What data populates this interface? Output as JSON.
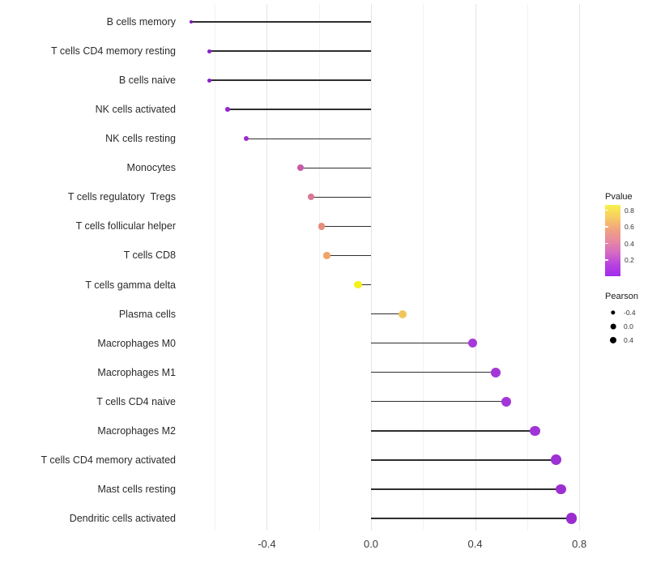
{
  "chart_data": {
    "type": "scatter",
    "variant": "lollipop",
    "orientation": "horizontal",
    "categories": [
      "B cells memory",
      "T cells CD4 memory resting",
      "B cells naive",
      "NK cells activated",
      "NK cells resting",
      "Monocytes",
      "T cells regulatory  Tregs",
      "T cells follicular helper",
      "T cells CD8",
      "T cells gamma delta",
      "Plasma cells",
      "Macrophages M0",
      "Macrophages M1",
      "T cells CD4 naive",
      "Macrophages M2",
      "T cells CD4 memory activated",
      "Mast cells resting",
      "Dendritic cells activated"
    ],
    "series": [
      {
        "name": "Pearson",
        "values": [
          -0.69,
          -0.62,
          -0.62,
          -0.55,
          -0.48,
          -0.27,
          -0.23,
          -0.19,
          -0.17,
          -0.05,
          0.12,
          0.39,
          0.48,
          0.52,
          0.63,
          0.71,
          0.73,
          0.77
        ]
      }
    ],
    "point_colors": [
      "#7E17BD",
      "#8A20C6",
      "#8C21C7",
      "#9428CC",
      "#9A2BD0",
      "#C75BA9",
      "#D97895",
      "#E68E7C",
      "#EFA468",
      "#F4F01C",
      "#F0C65C",
      "#A639DA",
      "#A537D9",
      "#A436D8",
      "#A134D6",
      "#9E31D3",
      "#9D2FD2",
      "#9A2CD0"
    ],
    "xlabel": "",
    "ylabel": "",
    "xlim": [
      -0.78,
      0.87
    ],
    "x_tick_labels": [
      "-0.4",
      "0.0",
      "0.4",
      "0.8"
    ],
    "x_major_gridlines": [
      -0.4,
      0.0,
      0.4,
      0.8
    ],
    "x_minor_gridlines": [
      -0.6,
      -0.2,
      0.2,
      0.6
    ],
    "grid": "vertical-only",
    "legend_position": "right",
    "legend": {
      "pvalue": {
        "title": "Pvalue",
        "tick_labels": [
          "0.8",
          "0.6",
          "0.4",
          "0.2"
        ],
        "gradient_stops": [
          "#F8F04B",
          "#F7CE61",
          "#F2A57F",
          "#E78BA0",
          "#D66BC2",
          "#B844E0",
          "#A02CEC"
        ]
      },
      "pearson": {
        "title": "Pearson",
        "items": [
          {
            "label": "-0.4",
            "value": -0.4
          },
          {
            "label": "0.0",
            "value": 0.0
          },
          {
            "label": "0.4",
            "value": 0.4
          }
        ]
      }
    },
    "colors": {
      "background": "#FFFFFF",
      "stem": "#2E2E2E",
      "gridline_major": "#E4E4E4",
      "gridline_minor": "#F1F1F1",
      "axis_text": "#3D3D3D",
      "legend_dot": "#000000"
    }
  }
}
